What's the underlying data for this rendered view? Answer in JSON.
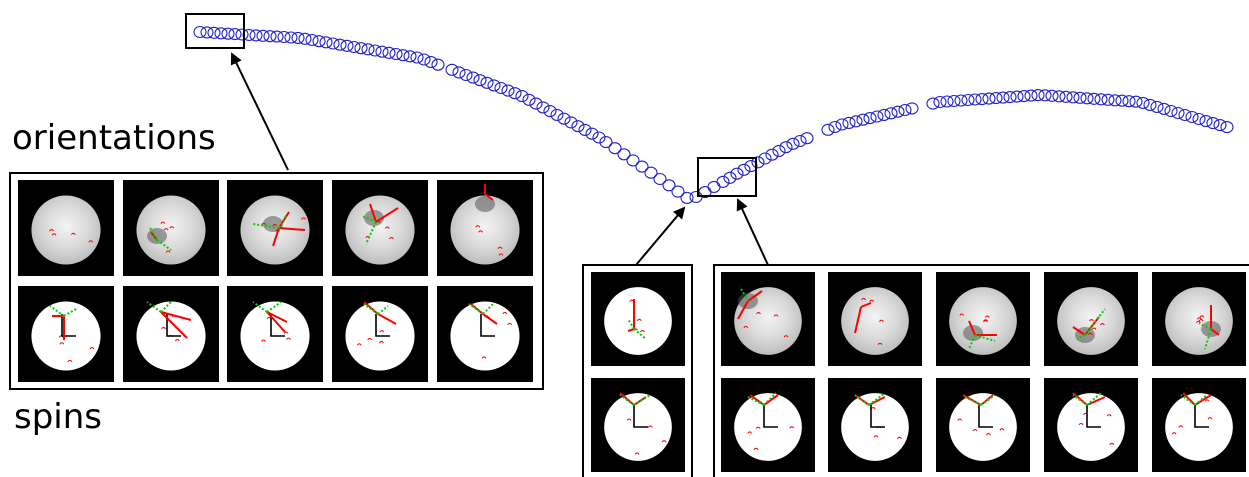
{
  "labels": {
    "orientations": "orientations",
    "spins": "spins"
  },
  "colors": {
    "trajectory": "#2222cc",
    "frame_red": "#ff0000",
    "frame_green": "#00cc00",
    "tile_background": "#000000",
    "disc": "#ffffff"
  },
  "panels": {
    "left": {
      "columns": 5,
      "rows": [
        "orientations",
        "spins"
      ]
    },
    "middle": {
      "columns": 1,
      "rows": 2
    },
    "right": {
      "columns": 5,
      "rows": 2
    }
  }
}
